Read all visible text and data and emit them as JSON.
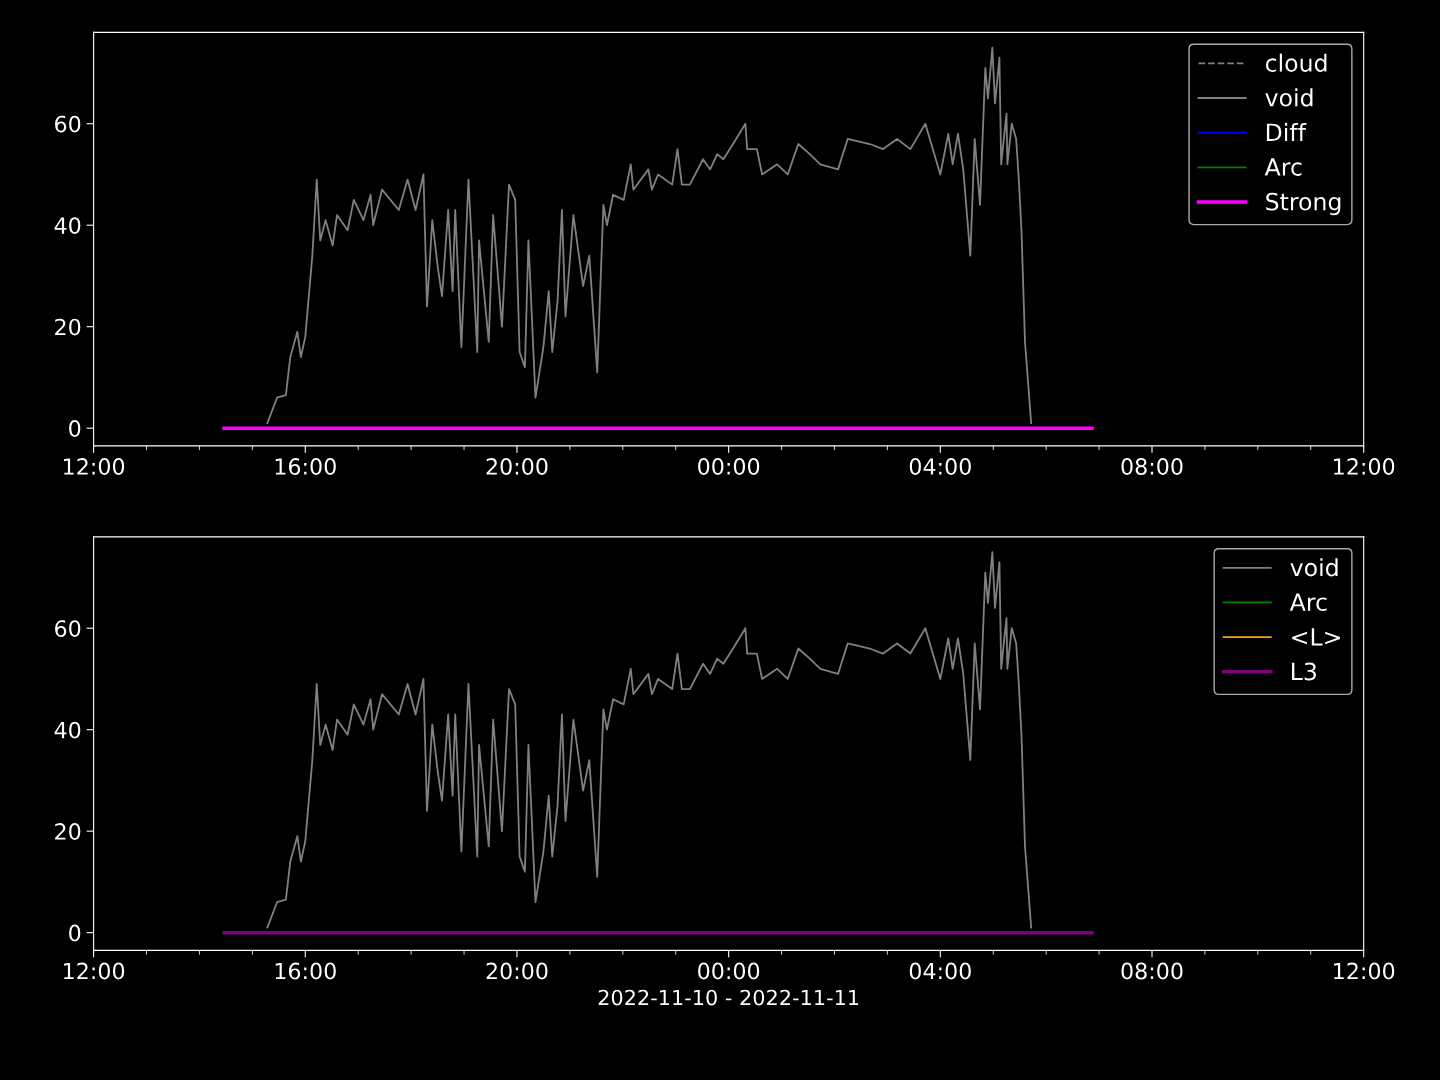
{
  "chart_data": [
    {
      "type": "line",
      "xlim": [
        "2022-11-10T12:00",
        "2022-11-11T12:00"
      ],
      "xticks": [
        {
          "value": "2022-11-10T12:00",
          "label": "12:00"
        },
        {
          "value": "2022-11-10T13:00",
          "label": null
        },
        {
          "value": "2022-11-10T14:00",
          "label": null
        },
        {
          "value": "2022-11-10T15:00",
          "label": null
        },
        {
          "value": "2022-11-10T16:00",
          "label": "16:00"
        },
        {
          "value": "2022-11-10T17:00",
          "label": null
        },
        {
          "value": "2022-11-10T18:00",
          "label": null
        },
        {
          "value": "2022-11-10T19:00",
          "label": null
        },
        {
          "value": "2022-11-10T20:00",
          "label": "20:00"
        },
        {
          "value": "2022-11-10T21:00",
          "label": null
        },
        {
          "value": "2022-11-10T22:00",
          "label": null
        },
        {
          "value": "2022-11-10T23:00",
          "label": null
        },
        {
          "value": "2022-11-11T00:00",
          "label": "00:00"
        },
        {
          "value": "2022-11-11T01:00",
          "label": null
        },
        {
          "value": "2022-11-11T02:00",
          "label": null
        },
        {
          "value": "2022-11-11T03:00",
          "label": null
        },
        {
          "value": "2022-11-11T04:00",
          "label": "04:00"
        },
        {
          "value": "2022-11-11T05:00",
          "label": null
        },
        {
          "value": "2022-11-11T06:00",
          "label": null
        },
        {
          "value": "2022-11-11T07:00",
          "label": null
        },
        {
          "value": "2022-11-11T08:00",
          "label": "08:00"
        },
        {
          "value": "2022-11-11T09:00",
          "label": null
        },
        {
          "value": "2022-11-11T10:00",
          "label": null
        },
        {
          "value": "2022-11-11T11:00",
          "label": null
        },
        {
          "value": "2022-11-11T12:00",
          "label": "12:00"
        }
      ],
      "ylim": [
        -3.5,
        78
      ],
      "yticks": [
        0,
        20,
        40,
        60
      ],
      "legend": "top right",
      "grid": false,
      "series": [
        {
          "name": "cloud",
          "color": "#808080",
          "line_style": "dashed"
        },
        {
          "name": "void",
          "color": "#808080",
          "x": [
            "2022-11-10T15:17",
            "2022-11-10T15:28",
            "2022-11-10T15:38",
            "2022-11-10T15:43",
            "2022-11-10T15:51",
            "2022-11-10T15:55",
            "2022-11-10T16:00",
            "2022-11-10T16:08",
            "2022-11-10T16:13",
            "2022-11-10T16:17",
            "2022-11-10T16:23",
            "2022-11-10T16:31",
            "2022-11-10T16:36",
            "2022-11-10T16:48",
            "2022-11-10T16:55",
            "2022-11-10T17:06",
            "2022-11-10T17:14",
            "2022-11-10T17:17",
            "2022-11-10T17:27",
            "2022-11-10T17:46",
            "2022-11-10T17:56",
            "2022-11-10T18:05",
            "2022-11-10T18:14",
            "2022-11-10T18:18",
            "2022-11-10T18:24",
            "2022-11-10T18:30",
            "2022-11-10T18:35",
            "2022-11-10T18:42",
            "2022-11-10T18:47",
            "2022-11-10T18:50",
            "2022-11-10T18:57",
            "2022-11-10T19:05",
            "2022-11-10T19:15",
            "2022-11-10T19:17",
            "2022-11-10T19:28",
            "2022-11-10T19:33",
            "2022-11-10T19:43",
            "2022-11-10T19:51",
            "2022-11-10T19:58",
            "2022-11-10T20:03",
            "2022-11-10T20:09",
            "2022-11-10T20:13",
            "2022-11-10T20:21",
            "2022-11-10T20:30",
            "2022-11-10T20:36",
            "2022-11-10T20:40",
            "2022-11-10T20:46",
            "2022-11-10T20:51",
            "2022-11-10T20:55",
            "2022-11-10T21:04",
            "2022-11-10T21:15",
            "2022-11-10T21:22",
            "2022-11-10T21:31",
            "2022-11-10T21:38",
            "2022-11-10T21:42",
            "2022-11-10T21:49",
            "2022-11-10T22:01",
            "2022-11-10T22:09",
            "2022-11-10T22:12",
            "2022-11-10T22:29",
            "2022-11-10T22:33",
            "2022-11-10T22:40",
            "2022-11-10T22:56",
            "2022-11-10T23:02",
            "2022-11-10T23:07",
            "2022-11-10T23:16",
            "2022-11-10T23:31",
            "2022-11-10T23:39",
            "2022-11-10T23:47",
            "2022-11-10T23:54",
            "2022-11-11T00:05",
            "2022-11-11T00:19",
            "2022-11-11T00:21",
            "2022-11-11T00:32",
            "2022-11-11T00:38",
            "2022-11-11T00:55",
            "2022-11-11T01:07",
            "2022-11-11T01:19",
            "2022-11-11T01:32",
            "2022-11-11T01:44",
            "2022-11-11T02:04",
            "2022-11-11T02:15",
            "2022-11-11T02:40",
            "2022-11-11T02:55",
            "2022-11-11T03:11",
            "2022-11-11T03:26",
            "2022-11-11T03:43",
            "2022-11-11T04:00",
            "2022-11-11T04:09",
            "2022-11-11T04:14",
            "2022-11-11T04:20",
            "2022-11-11T04:26",
            "2022-11-11T04:34",
            "2022-11-11T04:39",
            "2022-11-11T04:45",
            "2022-11-11T04:51",
            "2022-11-11T04:54",
            "2022-11-11T04:59",
            "2022-11-11T05:02",
            "2022-11-11T05:07",
            "2022-11-11T05:09",
            "2022-11-11T05:15",
            "2022-11-11T05:16",
            "2022-11-11T05:21",
            "2022-11-11T05:26",
            "2022-11-11T05:29",
            "2022-11-11T05:32",
            "2022-11-11T05:36",
            "2022-11-11T05:43"
          ],
          "values": [
            1,
            6,
            6.5,
            14,
            19,
            14,
            18,
            34,
            49,
            37,
            41,
            36,
            42,
            39,
            45,
            41,
            46,
            40,
            47,
            43,
            49,
            43,
            50,
            24,
            41,
            32,
            26,
            43,
            27,
            43,
            16,
            49,
            15,
            37,
            17,
            42,
            20,
            48,
            45,
            15,
            12,
            37,
            6,
            16,
            27,
            15,
            25,
            43,
            22,
            42,
            28,
            34,
            11,
            44,
            40,
            46,
            45,
            52,
            47,
            51,
            47,
            50,
            48,
            55,
            48,
            48,
            53,
            51,
            54,
            53,
            56,
            60,
            55,
            55,
            50,
            52,
            50,
            56,
            54,
            52,
            51,
            57,
            56,
            55,
            57,
            55,
            60,
            50,
            58,
            52,
            58,
            51,
            34,
            57,
            44,
            71,
            65,
            75,
            64,
            73,
            52,
            62,
            52,
            60,
            57,
            49,
            39,
            17,
            1
          ]
        },
        {
          "name": "Diff",
          "color": "#0000ff"
        },
        {
          "name": "Arc",
          "color": "#008000"
        },
        {
          "name": "Strong",
          "color": "#ff00ff",
          "x": [
            "2022-11-10T14:28",
            "2022-11-11T06:52"
          ],
          "values": [
            0,
            0
          ]
        }
      ]
    },
    {
      "type": "line",
      "xlim": [
        "2022-11-10T12:00",
        "2022-11-11T12:00"
      ],
      "xlabel": "2022-11-10 - 2022-11-11",
      "xticks": [
        {
          "value": "2022-11-10T12:00",
          "label": "12:00"
        },
        {
          "value": "2022-11-10T13:00",
          "label": null
        },
        {
          "value": "2022-11-10T14:00",
          "label": null
        },
        {
          "value": "2022-11-10T15:00",
          "label": null
        },
        {
          "value": "2022-11-10T16:00",
          "label": "16:00"
        },
        {
          "value": "2022-11-10T17:00",
          "label": null
        },
        {
          "value": "2022-11-10T18:00",
          "label": null
        },
        {
          "value": "2022-11-10T19:00",
          "label": null
        },
        {
          "value": "2022-11-10T20:00",
          "label": "20:00"
        },
        {
          "value": "2022-11-10T21:00",
          "label": null
        },
        {
          "value": "2022-11-10T22:00",
          "label": null
        },
        {
          "value": "2022-11-10T23:00",
          "label": null
        },
        {
          "value": "2022-11-11T00:00",
          "label": "00:00"
        },
        {
          "value": "2022-11-11T01:00",
          "label": null
        },
        {
          "value": "2022-11-11T02:00",
          "label": null
        },
        {
          "value": "2022-11-11T03:00",
          "label": null
        },
        {
          "value": "2022-11-11T04:00",
          "label": "04:00"
        },
        {
          "value": "2022-11-11T05:00",
          "label": null
        },
        {
          "value": "2022-11-11T06:00",
          "label": null
        },
        {
          "value": "2022-11-11T07:00",
          "label": null
        },
        {
          "value": "2022-11-11T08:00",
          "label": "08:00"
        },
        {
          "value": "2022-11-11T09:00",
          "label": null
        },
        {
          "value": "2022-11-11T10:00",
          "label": null
        },
        {
          "value": "2022-11-11T11:00",
          "label": null
        },
        {
          "value": "2022-11-11T12:00",
          "label": "12:00"
        }
      ],
      "ylim": [
        -3.5,
        78
      ],
      "yticks": [
        0,
        20,
        40,
        60
      ],
      "legend": "top right",
      "grid": false,
      "series": [
        {
          "name": "void",
          "color": "#808080",
          "x": [
            "2022-11-10T15:17",
            "2022-11-10T15:28",
            "2022-11-10T15:38",
            "2022-11-10T15:43",
            "2022-11-10T15:51",
            "2022-11-10T15:55",
            "2022-11-10T16:00",
            "2022-11-10T16:08",
            "2022-11-10T16:13",
            "2022-11-10T16:17",
            "2022-11-10T16:23",
            "2022-11-10T16:31",
            "2022-11-10T16:36",
            "2022-11-10T16:48",
            "2022-11-10T16:55",
            "2022-11-10T17:06",
            "2022-11-10T17:14",
            "2022-11-10T17:17",
            "2022-11-10T17:27",
            "2022-11-10T17:46",
            "2022-11-10T17:56",
            "2022-11-10T18:05",
            "2022-11-10T18:14",
            "2022-11-10T18:18",
            "2022-11-10T18:24",
            "2022-11-10T18:30",
            "2022-11-10T18:35",
            "2022-11-10T18:42",
            "2022-11-10T18:47",
            "2022-11-10T18:50",
            "2022-11-10T18:57",
            "2022-11-10T19:05",
            "2022-11-10T19:15",
            "2022-11-10T19:17",
            "2022-11-10T19:28",
            "2022-11-10T19:33",
            "2022-11-10T19:43",
            "2022-11-10T19:51",
            "2022-11-10T19:58",
            "2022-11-10T20:03",
            "2022-11-10T20:09",
            "2022-11-10T20:13",
            "2022-11-10T20:21",
            "2022-11-10T20:30",
            "2022-11-10T20:36",
            "2022-11-10T20:40",
            "2022-11-10T20:46",
            "2022-11-10T20:51",
            "2022-11-10T20:55",
            "2022-11-10T21:04",
            "2022-11-10T21:15",
            "2022-11-10T21:22",
            "2022-11-10T21:31",
            "2022-11-10T21:38",
            "2022-11-10T21:42",
            "2022-11-10T21:49",
            "2022-11-10T22:01",
            "2022-11-10T22:09",
            "2022-11-10T22:12",
            "2022-11-10T22:29",
            "2022-11-10T22:33",
            "2022-11-10T22:40",
            "2022-11-10T22:56",
            "2022-11-10T23:02",
            "2022-11-10T23:07",
            "2022-11-10T23:16",
            "2022-11-10T23:31",
            "2022-11-10T23:39",
            "2022-11-10T23:47",
            "2022-11-10T23:54",
            "2022-11-11T00:05",
            "2022-11-11T00:19",
            "2022-11-11T00:21",
            "2022-11-11T00:32",
            "2022-11-11T00:38",
            "2022-11-11T00:55",
            "2022-11-11T01:07",
            "2022-11-11T01:19",
            "2022-11-11T01:32",
            "2022-11-11T01:44",
            "2022-11-11T02:04",
            "2022-11-11T02:15",
            "2022-11-11T02:40",
            "2022-11-11T02:55",
            "2022-11-11T03:11",
            "2022-11-11T03:26",
            "2022-11-11T03:43",
            "2022-11-11T04:00",
            "2022-11-11T04:09",
            "2022-11-11T04:14",
            "2022-11-11T04:20",
            "2022-11-11T04:26",
            "2022-11-11T04:34",
            "2022-11-11T04:39",
            "2022-11-11T04:45",
            "2022-11-11T04:51",
            "2022-11-11T04:54",
            "2022-11-11T04:59",
            "2022-11-11T05:02",
            "2022-11-11T05:07",
            "2022-11-11T05:09",
            "2022-11-11T05:15",
            "2022-11-11T05:16",
            "2022-11-11T05:21",
            "2022-11-11T05:26",
            "2022-11-11T05:29",
            "2022-11-11T05:32",
            "2022-11-11T05:36",
            "2022-11-11T05:43"
          ],
          "values": [
            1,
            6,
            6.5,
            14,
            19,
            14,
            18,
            34,
            49,
            37,
            41,
            36,
            42,
            39,
            45,
            41,
            46,
            40,
            47,
            43,
            49,
            43,
            50,
            24,
            41,
            32,
            26,
            43,
            27,
            43,
            16,
            49,
            15,
            37,
            17,
            42,
            20,
            48,
            45,
            15,
            12,
            37,
            6,
            16,
            27,
            15,
            25,
            43,
            22,
            42,
            28,
            34,
            11,
            44,
            40,
            46,
            45,
            52,
            47,
            51,
            47,
            50,
            48,
            55,
            48,
            48,
            53,
            51,
            54,
            53,
            56,
            60,
            55,
            55,
            50,
            52,
            50,
            56,
            54,
            52,
            51,
            57,
            56,
            55,
            57,
            55,
            60,
            50,
            58,
            52,
            58,
            51,
            34,
            57,
            44,
            71,
            65,
            75,
            64,
            73,
            52,
            62,
            52,
            60,
            57,
            49,
            39,
            17,
            1
          ]
        },
        {
          "name": "Arc",
          "color": "#008000"
        },
        {
          "name": "<L>",
          "color": "#ffa500"
        },
        {
          "name": "L3",
          "color": "#800080",
          "x": [
            "2022-11-10T14:28",
            "2022-11-11T06:52"
          ],
          "values": [
            0,
            0
          ]
        }
      ]
    }
  ]
}
